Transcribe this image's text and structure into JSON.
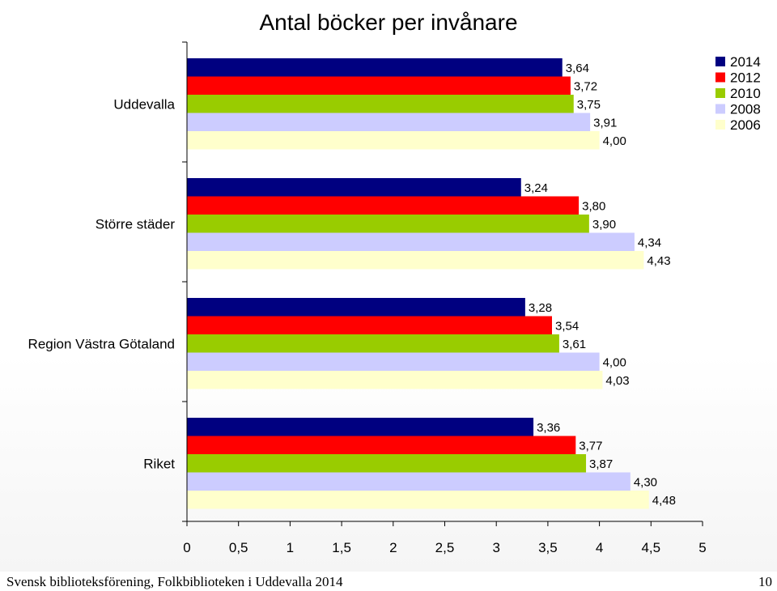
{
  "chart_data": {
    "type": "bar",
    "orientation": "horizontal",
    "title": "Antal böcker per invånare",
    "xlabel": "",
    "ylabel": "",
    "xlim": [
      0,
      5
    ],
    "x_ticks": [
      "0",
      "0,5",
      "1",
      "1,5",
      "2",
      "2,5",
      "3",
      "3,5",
      "4",
      "4,5",
      "5"
    ],
    "grid": false,
    "legend_position": "top-right",
    "categories": [
      "Uddevalla",
      "Större städer",
      "Region Västra Götaland",
      "Riket"
    ],
    "series": [
      {
        "name": "2014",
        "color": "#000080",
        "values": [
          3.64,
          3.24,
          3.28,
          3.36
        ],
        "labels": [
          "3,64",
          "3,24",
          "3,28",
          "3,36"
        ]
      },
      {
        "name": "2012",
        "color": "#ff0000",
        "values": [
          3.72,
          3.8,
          3.54,
          3.77
        ],
        "labels": [
          "3,72",
          "3,80",
          "3,54",
          "3,77"
        ]
      },
      {
        "name": "2010",
        "color": "#99cc00",
        "values": [
          3.75,
          3.9,
          3.61,
          3.87
        ],
        "labels": [
          "3,75",
          "3,90",
          "3,61",
          "3,87"
        ]
      },
      {
        "name": "2008",
        "color": "#ccccff",
        "values": [
          3.91,
          4.34,
          4.0,
          4.3
        ],
        "labels": [
          "3,91",
          "4,34",
          "4,00",
          "4,30"
        ]
      },
      {
        "name": "2006",
        "color": "#ffffcc",
        "values": [
          4.0,
          4.43,
          4.03,
          4.48
        ],
        "labels": [
          "4,00",
          "4,43",
          "4,03",
          "4,48"
        ]
      }
    ]
  },
  "footer": {
    "source": "Svensk biblioteksförening, Folkbiblioteken i Uddevalla 2014",
    "page_number": "10"
  }
}
